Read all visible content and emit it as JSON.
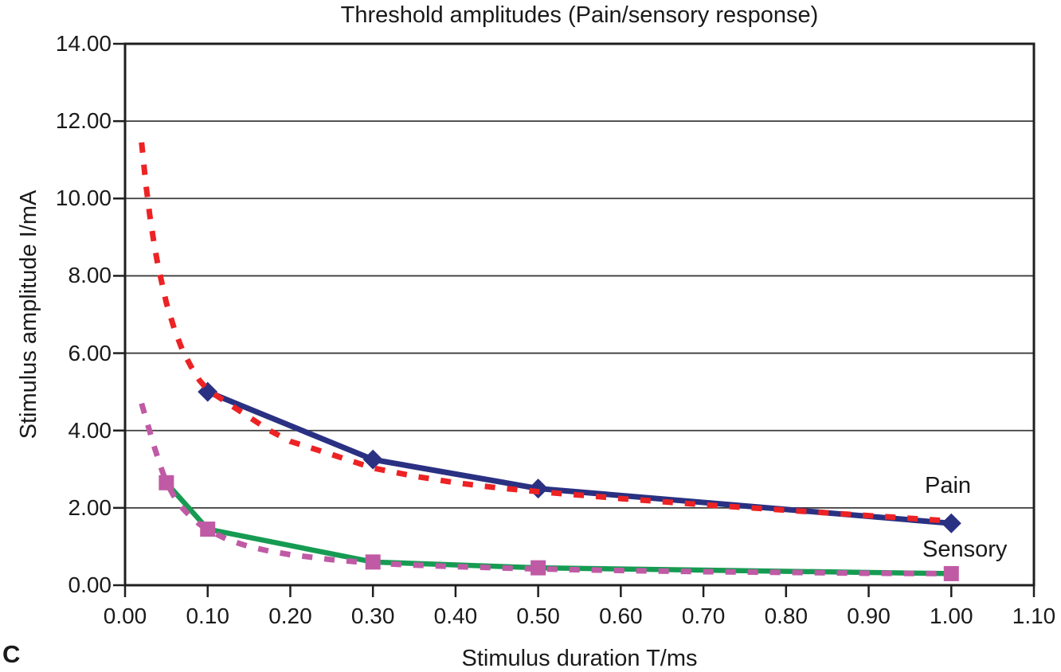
{
  "title": "Threshold amplitudes (Pain/sensory response)",
  "panel_letter": "C",
  "annotations": {
    "pain_label": "Pain",
    "sensory_label": "Sensory"
  },
  "colors": {
    "background": "#ffffff",
    "axis": "#1f1f1f",
    "grid": "#3c3c3c",
    "text": "#1a1a1a",
    "pain": "#2a3182",
    "sensory": "#169b52",
    "pain_fit": "#ed2224",
    "sensory_fit": "#c05aa5"
  },
  "chart_data": {
    "type": "line",
    "title": "Threshold amplitudes (Pain/sensory response)",
    "xlabel": "Stimulus duration T/ms",
    "ylabel": "Stimulus amplitude I/mA",
    "xlim": [
      0.0,
      1.1
    ],
    "ylim": [
      0.0,
      14.0
    ],
    "grid": "horizontal-only",
    "legend_position": "inline text labels at right ends of curves",
    "x_ticks": [
      {
        "value": 0.0,
        "label": "0.00"
      },
      {
        "value": 0.1,
        "label": "0.10"
      },
      {
        "value": 0.2,
        "label": "0.20"
      },
      {
        "value": 0.3,
        "label": "0.30"
      },
      {
        "value": 0.4,
        "label": "0.40"
      },
      {
        "value": 0.5,
        "label": "0.50"
      },
      {
        "value": 0.6,
        "label": "0.60"
      },
      {
        "value": 0.7,
        "label": "0.70"
      },
      {
        "value": 0.8,
        "label": "0.80"
      },
      {
        "value": 0.9,
        "label": "0.90"
      },
      {
        "value": 1.0,
        "label": "1.00"
      },
      {
        "value": 1.1,
        "label": "1.10"
      }
    ],
    "y_ticks": [
      {
        "value": 0.0,
        "label": "0.00"
      },
      {
        "value": 2.0,
        "label": "2.00"
      },
      {
        "value": 4.0,
        "label": "4.00"
      },
      {
        "value": 6.0,
        "label": "6.00"
      },
      {
        "value": 8.0,
        "label": "8.00"
      },
      {
        "value": 10.0,
        "label": "10.00"
      },
      {
        "value": 12.0,
        "label": "12.00"
      },
      {
        "value": 14.0,
        "label": "14.00"
      }
    ],
    "series": [
      {
        "name": "pain-measured",
        "label": "Pain",
        "style": "solid",
        "color": "#2a3182",
        "width": 7,
        "marker": "diamond",
        "marker_color": "#2a3182",
        "points": [
          [
            0.1,
            5.0
          ],
          [
            0.3,
            3.25
          ],
          [
            0.5,
            2.5
          ],
          [
            1.0,
            1.6
          ]
        ]
      },
      {
        "name": "sensory-measured",
        "label": "Sensory",
        "style": "solid",
        "color": "#169b52",
        "width": 6.5,
        "marker": "square",
        "marker_color": "#c05aa5",
        "points": [
          [
            0.05,
            2.65
          ],
          [
            0.1,
            1.45
          ],
          [
            0.3,
            0.6
          ],
          [
            0.5,
            0.45
          ],
          [
            1.0,
            0.3
          ]
        ]
      },
      {
        "name": "pain-fitted-dashed",
        "label": "",
        "style": "dashed",
        "color": "#ed2224",
        "width": 7,
        "marker": "none",
        "points": [
          [
            0.02,
            11.45
          ],
          [
            0.025,
            10.4
          ],
          [
            0.03,
            9.55
          ],
          [
            0.035,
            8.85
          ],
          [
            0.04,
            8.25
          ],
          [
            0.05,
            7.3
          ],
          [
            0.06,
            6.6
          ],
          [
            0.07,
            6.05
          ],
          [
            0.08,
            5.65
          ],
          [
            0.09,
            5.3
          ],
          [
            0.1,
            5.05
          ],
          [
            0.125,
            4.7
          ],
          [
            0.15,
            4.35
          ],
          [
            0.175,
            4.0
          ],
          [
            0.2,
            3.72
          ],
          [
            0.25,
            3.38
          ],
          [
            0.3,
            3.03
          ],
          [
            0.35,
            2.82
          ],
          [
            0.4,
            2.65
          ],
          [
            0.45,
            2.52
          ],
          [
            0.5,
            2.42
          ],
          [
            0.6,
            2.24
          ],
          [
            0.7,
            2.08
          ],
          [
            0.8,
            1.94
          ],
          [
            0.9,
            1.8
          ],
          [
            1.0,
            1.66
          ]
        ]
      },
      {
        "name": "sensory-fitted-dashed",
        "label": "",
        "style": "dashed",
        "color": "#c05aa5",
        "width": 7,
        "marker": "none",
        "points": [
          [
            0.02,
            4.7
          ],
          [
            0.025,
            4.33
          ],
          [
            0.03,
            3.97
          ],
          [
            0.035,
            3.6
          ],
          [
            0.04,
            3.27
          ],
          [
            0.045,
            2.95
          ],
          [
            0.05,
            2.66
          ],
          [
            0.06,
            2.27
          ],
          [
            0.07,
            1.98
          ],
          [
            0.08,
            1.76
          ],
          [
            0.09,
            1.58
          ],
          [
            0.1,
            1.43
          ],
          [
            0.125,
            1.17
          ],
          [
            0.15,
            1.0
          ],
          [
            0.175,
            0.88
          ],
          [
            0.2,
            0.79
          ],
          [
            0.25,
            0.66
          ],
          [
            0.3,
            0.57
          ],
          [
            0.35,
            0.52
          ],
          [
            0.4,
            0.48
          ],
          [
            0.45,
            0.45
          ],
          [
            0.5,
            0.42
          ],
          [
            0.6,
            0.38
          ],
          [
            0.7,
            0.35
          ],
          [
            0.8,
            0.33
          ],
          [
            0.9,
            0.31
          ],
          [
            1.0,
            0.3
          ]
        ]
      }
    ]
  }
}
